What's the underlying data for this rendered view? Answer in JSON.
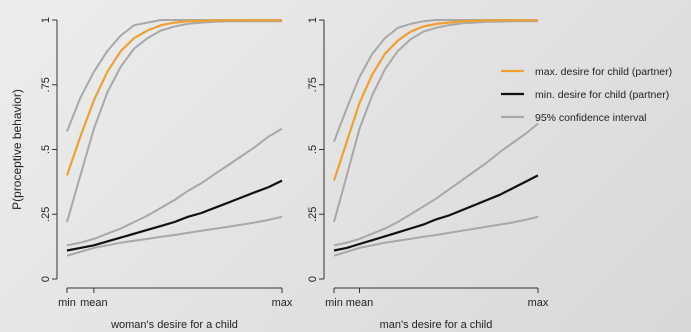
{
  "chart_data": [
    {
      "type": "line",
      "xlabel": "woman's desire for a child",
      "ylabel": "P(proceptive behavior)",
      "xticks": [
        "min",
        "mean",
        "max"
      ],
      "yticks": [
        "0",
        ".25",
        ".5",
        ".75",
        "1"
      ],
      "x_tick_positions": [
        0,
        0.125,
        1
      ],
      "xlim": [
        0,
        1
      ],
      "ylim": [
        0,
        1
      ],
      "x": [
        0,
        0.0625,
        0.125,
        0.1875,
        0.25,
        0.3125,
        0.375,
        0.4375,
        0.5,
        0.5625,
        0.625,
        0.6875,
        0.75,
        0.8125,
        0.875,
        0.9375,
        1
      ],
      "series": [
        {
          "role": "max",
          "color": "#f0a030",
          "values": [
            0.4,
            0.55,
            0.69,
            0.8,
            0.88,
            0.93,
            0.96,
            0.98,
            0.99,
            0.995,
            0.997,
            0.998,
            0.999,
            0.999,
            0.999,
            0.999,
            0.999
          ]
        },
        {
          "role": "max_ci_upper",
          "color": "#a8a8a8",
          "values": [
            0.57,
            0.7,
            0.8,
            0.88,
            0.94,
            0.98,
            0.99,
            1.0,
            1.0,
            1.0,
            1.0,
            1.0,
            1.0,
            1.0,
            1.0,
            1.0,
            1.0
          ]
        },
        {
          "role": "max_ci_lower",
          "color": "#a8a8a8",
          "values": [
            0.22,
            0.4,
            0.58,
            0.72,
            0.82,
            0.89,
            0.93,
            0.96,
            0.975,
            0.985,
            0.99,
            0.993,
            0.995,
            0.995,
            0.995,
            0.995,
            0.995
          ]
        },
        {
          "role": "min",
          "color": "#111111",
          "values": [
            0.11,
            0.12,
            0.13,
            0.145,
            0.16,
            0.175,
            0.19,
            0.205,
            0.22,
            0.24,
            0.255,
            0.275,
            0.295,
            0.315,
            0.335,
            0.355,
            0.38
          ]
        },
        {
          "role": "min_ci_upper",
          "color": "#a8a8a8",
          "values": [
            0.13,
            0.14,
            0.155,
            0.175,
            0.195,
            0.22,
            0.245,
            0.275,
            0.305,
            0.34,
            0.37,
            0.405,
            0.44,
            0.475,
            0.51,
            0.55,
            0.58
          ]
        },
        {
          "role": "min_ci_lower",
          "color": "#a8a8a8",
          "values": [
            0.09,
            0.105,
            0.12,
            0.13,
            0.14,
            0.148,
            0.155,
            0.163,
            0.17,
            0.178,
            0.186,
            0.194,
            0.202,
            0.21,
            0.218,
            0.228,
            0.24
          ]
        }
      ]
    },
    {
      "type": "line",
      "xlabel": "man's desire for a child",
      "ylabel": "",
      "xticks": [
        "min",
        "mean",
        "max"
      ],
      "yticks": [
        "0",
        ".25",
        ".5",
        ".75",
        "1"
      ],
      "x_tick_positions": [
        0,
        0.125,
        1
      ],
      "xlim": [
        0,
        1
      ],
      "ylim": [
        0,
        1
      ],
      "x": [
        0,
        0.0625,
        0.125,
        0.1875,
        0.25,
        0.3125,
        0.375,
        0.4375,
        0.5,
        0.5625,
        0.625,
        0.6875,
        0.75,
        0.8125,
        0.875,
        0.9375,
        1
      ],
      "series": [
        {
          "role": "max",
          "color": "#f0a030",
          "values": [
            0.38,
            0.53,
            0.68,
            0.79,
            0.87,
            0.92,
            0.955,
            0.975,
            0.985,
            0.99,
            0.995,
            0.997,
            0.998,
            0.999,
            0.999,
            0.999,
            0.999
          ]
        },
        {
          "role": "max_ci_upper",
          "color": "#a8a8a8",
          "values": [
            0.53,
            0.66,
            0.78,
            0.87,
            0.93,
            0.97,
            0.985,
            0.995,
            1.0,
            1.0,
            1.0,
            1.0,
            1.0,
            1.0,
            1.0,
            1.0,
            1.0
          ]
        },
        {
          "role": "max_ci_lower",
          "color": "#a8a8a8",
          "values": [
            0.22,
            0.4,
            0.58,
            0.71,
            0.81,
            0.88,
            0.925,
            0.955,
            0.97,
            0.98,
            0.987,
            0.99,
            0.993,
            0.994,
            0.995,
            0.995,
            0.995
          ]
        },
        {
          "role": "min",
          "color": "#111111",
          "values": [
            0.11,
            0.12,
            0.135,
            0.15,
            0.165,
            0.18,
            0.195,
            0.21,
            0.23,
            0.245,
            0.265,
            0.285,
            0.305,
            0.325,
            0.35,
            0.375,
            0.4
          ]
        },
        {
          "role": "min_ci_upper",
          "color": "#a8a8a8",
          "values": [
            0.13,
            0.14,
            0.155,
            0.175,
            0.195,
            0.22,
            0.25,
            0.28,
            0.31,
            0.345,
            0.38,
            0.415,
            0.45,
            0.49,
            0.525,
            0.56,
            0.6
          ]
        },
        {
          "role": "min_ci_lower",
          "color": "#a8a8a8",
          "values": [
            0.09,
            0.105,
            0.12,
            0.13,
            0.14,
            0.148,
            0.155,
            0.163,
            0.17,
            0.178,
            0.186,
            0.194,
            0.202,
            0.21,
            0.218,
            0.228,
            0.24
          ]
        }
      ]
    }
  ],
  "legend": {
    "placement": "right",
    "items": [
      {
        "label": "max. desire for child (partner)",
        "color": "#f0a030"
      },
      {
        "label": "min. desire for child (partner)",
        "color": "#111111"
      },
      {
        "label": "95% confidence interval",
        "color": "#a8a8a8"
      }
    ]
  }
}
